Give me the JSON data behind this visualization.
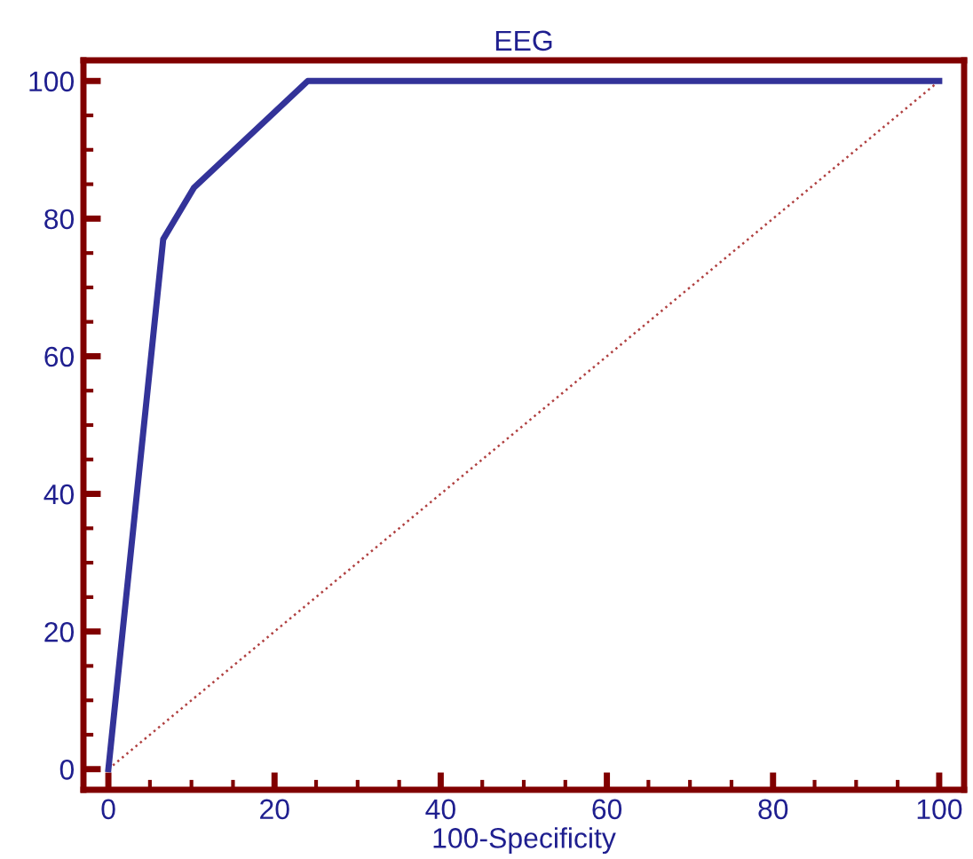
{
  "chart_data": {
    "type": "line",
    "title": "EEG",
    "xlabel": "100-Specificity",
    "series": [
      {
        "color": "#333399",
        "x": [
          0,
          6.6,
          10.3,
          24,
          100
        ],
        "values": [
          0,
          77,
          84.5,
          100,
          100
        ],
        "line_style": "solid"
      },
      {
        "color": "#b04040",
        "x": [
          0,
          100
        ],
        "values": [
          0,
          100
        ],
        "line_style": "dotted"
      }
    ],
    "xlim": [
      -3,
      103
    ],
    "ylim": [
      -3,
      103
    ],
    "xticks": [
      0,
      20,
      40,
      60,
      80,
      100
    ],
    "yticks": [
      0,
      20,
      40,
      60,
      80,
      100
    ],
    "grid": false,
    "legend": false,
    "marker": "none"
  }
}
